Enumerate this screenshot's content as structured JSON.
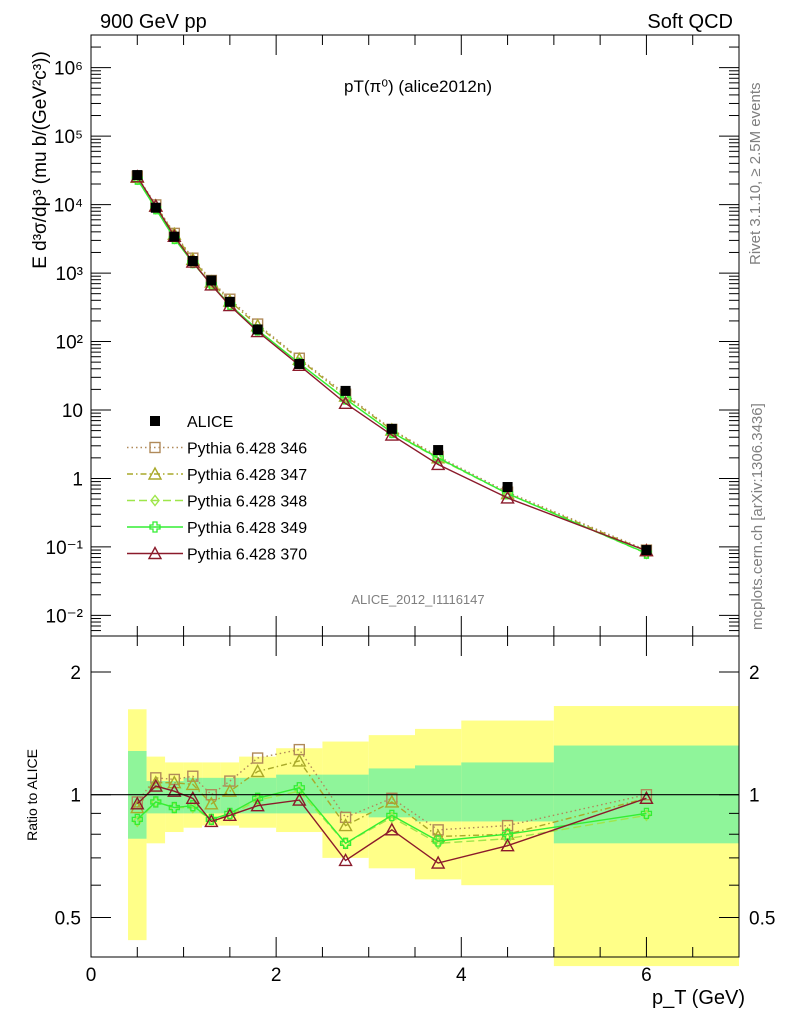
{
  "header": {
    "left": "900 GeV pp",
    "right": "Soft QCD"
  },
  "side_labels": {
    "rivet": "Rivet 3.1.10, ≥ 2.5M events",
    "mcplots": "mcplots.cern.ch [arXiv:1306.3436]"
  },
  "chart_data": [
    {
      "type": "scatter",
      "panel": "main",
      "title": "pT(π⁰) (alice2012n)",
      "watermark": "ALICE_2012_I1116147",
      "ylabel": "E d³σ/dp³ (mu b/(GeV²c³))",
      "yscale": "log",
      "ylim": [
        0.005,
        3000000
      ],
      "xlim": [
        0,
        7
      ],
      "ytick_labels": [
        "10⁻²",
        "10⁻¹",
        "1",
        "10",
        "10²",
        "10³",
        "10⁴",
        "10⁵",
        "10⁶"
      ],
      "legend_position": "lower-left",
      "data": {
        "name": "ALICE",
        "color": "#000000",
        "x": [
          0.5,
          0.7,
          0.9,
          1.1,
          1.3,
          1.5,
          1.8,
          2.25,
          2.75,
          3.25,
          3.75,
          4.5,
          6.0
        ],
        "y": [
          27000,
          9000,
          3400,
          1500,
          780,
          380,
          150,
          47,
          19,
          5.3,
          2.6,
          0.75,
          0.09
        ]
      },
      "series": [
        {
          "name": "Pythia 6.428 346",
          "color": "#b08a5a",
          "marker": "square-open",
          "dash": "1.5,3",
          "x": [
            0.5,
            0.7,
            0.9,
            1.1,
            1.3,
            1.5,
            1.8,
            2.25,
            2.75,
            3.25,
            3.75,
            4.5,
            6.0
          ],
          "y": [
            26000,
            9900,
            3800,
            1650,
            780,
            415,
            180,
            57,
            17,
            5.2,
            2.1,
            0.63,
            0.09
          ]
        },
        {
          "name": "Pythia 6.428 347",
          "color": "#a9a92a",
          "marker": "triangle-open",
          "dash": "6,3,1.5,3",
          "x": [
            0.5,
            0.7,
            0.9,
            1.1,
            1.3,
            1.5,
            1.8,
            2.25,
            2.75,
            3.25,
            3.75,
            4.5,
            6.0
          ],
          "y": [
            25000,
            9600,
            3700,
            1580,
            740,
            390,
            170,
            55,
            16,
            5.1,
            2.0,
            0.6,
            0.088
          ]
        },
        {
          "name": "Pythia 6.428 348",
          "color": "#9ee64a",
          "marker": "diamond-open",
          "dash": "8,4",
          "x": [
            0.5,
            0.7,
            0.9,
            1.1,
            1.3,
            1.5,
            1.8,
            2.25,
            2.75,
            3.25,
            3.75,
            4.5,
            6.0
          ],
          "y": [
            23500,
            8700,
            3200,
            1420,
            680,
            345,
            148,
            48,
            14.5,
            4.7,
            1.95,
            0.6,
            0.08
          ]
        },
        {
          "name": "Pythia 6.428 349",
          "color": "#33ee33",
          "marker": "cross-open",
          "dash": "",
          "x": [
            0.5,
            0.7,
            0.9,
            1.1,
            1.3,
            1.5,
            1.8,
            2.25,
            2.75,
            3.25,
            3.75,
            4.5,
            6.0
          ],
          "y": [
            23500,
            8700,
            3200,
            1420,
            680,
            345,
            148,
            48,
            14.5,
            4.7,
            2.0,
            0.6,
            0.081
          ]
        },
        {
          "name": "Pythia 6.428 370",
          "color": "#8b1a2b",
          "marker": "triangle-open",
          "dash": "",
          "x": [
            0.5,
            0.7,
            0.9,
            1.1,
            1.3,
            1.5,
            1.8,
            2.25,
            2.75,
            3.25,
            3.75,
            4.5,
            6.0
          ],
          "y": [
            25500,
            9500,
            3450,
            1450,
            670,
            335,
            140,
            45,
            12.5,
            4.3,
            1.6,
            0.52,
            0.088
          ]
        }
      ]
    },
    {
      "type": "line",
      "panel": "ratio",
      "ylabel": "Ratio to ALICE",
      "xlabel": "p_T (GeV)",
      "xlim": [
        0,
        7
      ],
      "ylim": [
        0.4,
        2.45
      ],
      "x_tick_labels": [
        "0",
        "2",
        "4",
        "6"
      ],
      "y_tick_labels": [
        "0.5",
        "1",
        "2"
      ],
      "reference_line": 1,
      "uncertainty_bands": {
        "bin_edges": [
          0.4,
          0.6,
          0.8,
          1.0,
          1.2,
          1.4,
          1.6,
          2.0,
          2.5,
          3.0,
          3.5,
          4.0,
          5.0,
          7.0
        ],
        "stat_low": [
          0.78,
          0.9,
          0.9,
          0.9,
          0.9,
          0.9,
          0.9,
          0.9,
          0.9,
          0.88,
          0.86,
          0.86,
          0.76
        ],
        "stat_high": [
          1.28,
          1.08,
          1.08,
          1.1,
          1.1,
          1.1,
          1.1,
          1.12,
          1.12,
          1.16,
          1.18,
          1.2,
          1.32
        ],
        "total_low": [
          0.44,
          0.76,
          0.81,
          0.83,
          0.84,
          0.84,
          0.83,
          0.81,
          0.7,
          0.66,
          0.62,
          0.6,
          0.38
        ],
        "total_high": [
          1.62,
          1.24,
          1.2,
          1.2,
          1.2,
          1.2,
          1.24,
          1.3,
          1.35,
          1.4,
          1.45,
          1.52,
          1.65
        ]
      },
      "series": [
        {
          "name": "Pythia 6.428 346",
          "y": [
            0.96,
            1.1,
            1.09,
            1.11,
            1.0,
            1.08,
            1.23,
            1.29,
            0.88,
            0.98,
            0.82,
            0.84,
            1.0
          ]
        },
        {
          "name": "Pythia 6.428 347",
          "y": [
            0.93,
            1.07,
            1.07,
            1.06,
            0.95,
            1.02,
            1.14,
            1.21,
            0.84,
            0.96,
            0.79,
            0.8,
            0.98
          ]
        },
        {
          "name": "Pythia 6.428 348",
          "y": [
            0.86,
            0.96,
            0.93,
            0.93,
            0.87,
            0.89,
            0.97,
            1.02,
            0.76,
            0.88,
            0.76,
            0.78,
            0.89
          ]
        },
        {
          "name": "Pythia 6.428 349",
          "y": [
            0.87,
            0.96,
            0.93,
            0.94,
            0.87,
            0.9,
            0.98,
            1.04,
            0.76,
            0.89,
            0.77,
            0.8,
            0.9
          ]
        },
        {
          "name": "Pythia 6.428 370",
          "y": [
            0.95,
            1.05,
            1.02,
            0.98,
            0.86,
            0.89,
            0.94,
            0.97,
            0.69,
            0.82,
            0.68,
            0.75,
            0.98
          ]
        }
      ]
    }
  ]
}
